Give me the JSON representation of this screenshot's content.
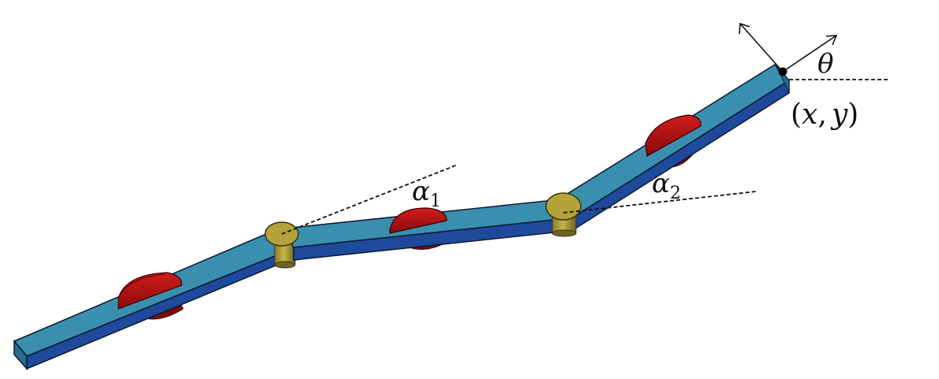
{
  "labels": {
    "theta": "θ",
    "alpha1_base": "α",
    "alpha1_sub": "1",
    "alpha2_base": "α",
    "alpha2_sub": "2",
    "coord_open": "(",
    "coord_x": "x",
    "coord_comma": ",",
    "coord_y": "y",
    "coord_close": ")"
  },
  "colors": {
    "link_top": "#3a8fae",
    "link_side": "#1f4a9c",
    "link_edge": "#0b1a33",
    "wheel_red": "#b81414",
    "wheel_dark": "#6e0606",
    "joint_gold": "#b3a33a",
    "joint_shadow": "#6e6420",
    "line": "#111111"
  }
}
